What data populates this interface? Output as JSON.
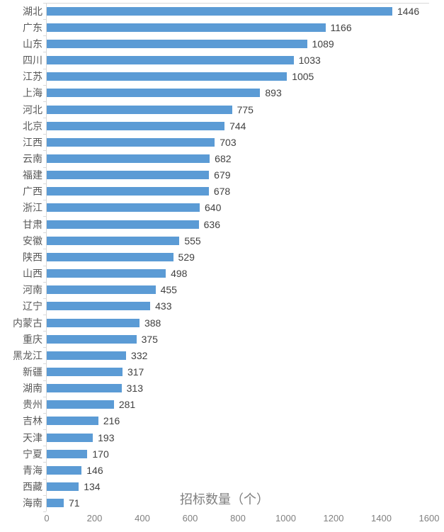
{
  "chart_data": {
    "type": "bar",
    "orientation": "horizontal",
    "xlabel": "招标数量（个）",
    "categories": [
      "湖北",
      "广东",
      "山东",
      "四川",
      "江苏",
      "上海",
      "河北",
      "北京",
      "江西",
      "云南",
      "福建",
      "广西",
      "浙江",
      "甘肃",
      "安徽",
      "陕西",
      "山西",
      "河南",
      "辽宁",
      "内蒙古",
      "重庆",
      "黑龙江",
      "新疆",
      "湖南",
      "贵州",
      "吉林",
      "天津",
      "宁夏",
      "青海",
      "西藏",
      "海南"
    ],
    "values": [
      1446,
      1166,
      1089,
      1033,
      1005,
      893,
      775,
      744,
      703,
      682,
      679,
      678,
      640,
      636,
      555,
      529,
      498,
      455,
      433,
      388,
      375,
      332,
      317,
      313,
      281,
      216,
      193,
      170,
      146,
      134,
      71
    ],
    "x_ticks": [
      0,
      200,
      400,
      600,
      800,
      1000,
      1200,
      1400,
      1600
    ],
    "xlim": [
      0,
      1600
    ],
    "grid": "off",
    "legend": "none",
    "bar_color": "#5b9bd5"
  },
  "colors": {
    "bar": "#5b9bd5",
    "axis_line": "#d9d9d9",
    "category_label": "#595959",
    "value_label": "#404040",
    "tick_label": "#808080",
    "axis_title": "#7f7f7f",
    "background": "#ffffff"
  }
}
